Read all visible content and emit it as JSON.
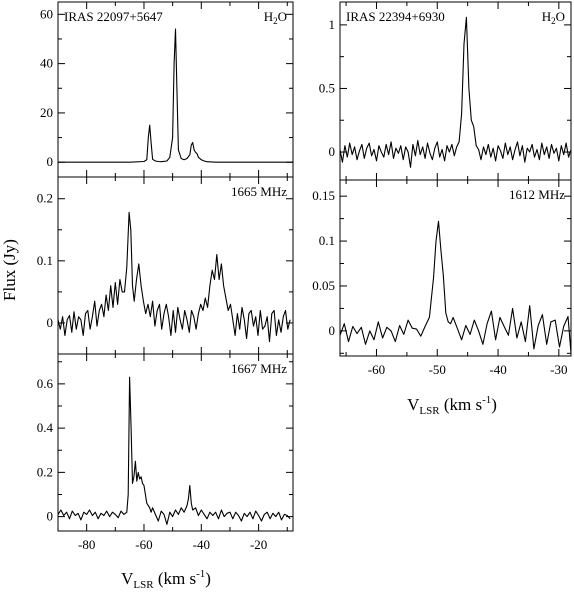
{
  "figure": {
    "ylabel": "Flux (Jy)",
    "xlabel_left": {
      "main": "V",
      "sub": "LSR",
      "unit_open": " (km s",
      "sup": "-1",
      "unit_close": ")"
    },
    "xlabel_right": {
      "main": "V",
      "sub": "LSR",
      "unit_open": " (km s",
      "sup": "-1",
      "unit_close": ")"
    }
  },
  "chart_data": [
    {
      "type": "line",
      "id": "iras22097-h2o",
      "source": "IRAS 22097+5647",
      "line_label": {
        "main": "H",
        "sub": "2",
        "tail": "O"
      },
      "xlim": [
        -90,
        -8
      ],
      "ylim": [
        -6,
        65
      ],
      "xticks": [
        -80,
        -60,
        -40,
        -20
      ],
      "xtick_labels": [
        "",
        "",
        "",
        ""
      ],
      "yticks": [
        0,
        20,
        40,
        60
      ],
      "ytick_labels": [
        "0",
        "20",
        "40",
        "60"
      ],
      "x": [
        -90,
        -85,
        -80,
        -75,
        -70,
        -65,
        -60,
        -59,
        -58.5,
        -58,
        -57.5,
        -57,
        -56,
        -55,
        -54,
        -52,
        -51,
        -50,
        -49.5,
        -49,
        -48.5,
        -48,
        -47,
        -46,
        -45,
        -44,
        -43.5,
        -43,
        -42.5,
        -42,
        -41.5,
        -41,
        -40,
        -39,
        -38,
        -35,
        -30,
        -25,
        -20,
        -15,
        -10,
        -8
      ],
      "y": [
        0,
        0,
        0,
        0,
        0,
        0,
        0.3,
        1,
        10,
        15,
        8,
        1.2,
        0.5,
        0.3,
        0.2,
        0.5,
        2,
        10,
        40,
        54,
        30,
        5,
        1.5,
        1,
        1.5,
        3,
        7,
        8,
        5,
        4,
        3.5,
        2,
        1,
        0.5,
        0.2,
        0,
        0,
        0,
        0,
        0,
        0,
        0
      ]
    },
    {
      "type": "line",
      "id": "iras22097-1665",
      "line_label": {
        "main": "1665 MHz"
      },
      "xlim": [
        -90,
        -8
      ],
      "ylim": [
        -0.05,
        0.235
      ],
      "xticks": [
        -80,
        -60,
        -40,
        -20
      ],
      "xtick_labels": [
        "",
        "",
        "",
        ""
      ],
      "yticks": [
        0,
        0.1,
        0.2
      ],
      "ytick_labels": [
        "0",
        "0.1",
        "0.2"
      ],
      "x": [
        -90,
        -89.2,
        -88.4,
        -87.6,
        -86.8,
        -86,
        -85.2,
        -84.4,
        -83.6,
        -82.8,
        -82,
        -81.2,
        -80.4,
        -79.6,
        -78.8,
        -78,
        -77.2,
        -76.4,
        -75.6,
        -74.8,
        -74,
        -73.2,
        -72.4,
        -71.6,
        -70.8,
        -70,
        -69.2,
        -68.4,
        -67.6,
        -66.8,
        -66,
        -65.2,
        -64.6,
        -64,
        -63.4,
        -62.6,
        -61.8,
        -61,
        -60.2,
        -59.4,
        -58.6,
        -57.8,
        -57,
        -56.2,
        -55.4,
        -54.6,
        -53.8,
        -53,
        -52.2,
        -51.4,
        -50.6,
        -49.8,
        -49,
        -48.2,
        -47.4,
        -46.6,
        -45.8,
        -45,
        -44.2,
        -43.4,
        -42.6,
        -41.8,
        -41,
        -40.2,
        -39.4,
        -38.6,
        -37.8,
        -37,
        -36.2,
        -35.4,
        -34.6,
        -33.8,
        -33,
        -32.2,
        -31.4,
        -30.6,
        -29.8,
        -29,
        -28.2,
        -27.4,
        -26.6,
        -25.8,
        -25,
        -24.2,
        -23.4,
        -22.6,
        -21.8,
        -21,
        -20.2,
        -19.4,
        -18.6,
        -17.8,
        -17,
        -16.2,
        -15.4,
        -14.6,
        -13.8,
        -13,
        -12.2,
        -11.4,
        -10.6,
        -9.8,
        -9
      ],
      "y": [
        0.005,
        -0.01,
        0.01,
        -0.02,
        0.005,
        0.012,
        -0.015,
        0.018,
        -0.01,
        0.01,
        0.005,
        -0.02,
        0.015,
        0.02,
        -0.01,
        0.01,
        0.035,
        -0.005,
        0.02,
        0.03,
        0.01,
        0.045,
        0.02,
        0.06,
        0.025,
        0.065,
        0.03,
        0.07,
        0.05,
        0.05,
        0.09,
        0.178,
        0.15,
        0.06,
        0.035,
        0.07,
        0.095,
        0.06,
        0.035,
        0.015,
        0.03,
        0.01,
        0.035,
        -0.005,
        0.02,
        0.03,
        -0.01,
        0.015,
        0.03,
        0.01,
        -0.02,
        0.02,
        -0.015,
        0.025,
        0.005,
        -0.01,
        0.02,
        0.005,
        -0.015,
        0.02,
        0.01,
        -0.01,
        0.015,
        0.03,
        0.02,
        0.04,
        0.025,
        0.06,
        0.085,
        0.07,
        0.11,
        0.07,
        0.095,
        0.06,
        0.04,
        0.02,
        0.03,
        0.005,
        -0.02,
        0.015,
        -0.01,
        0.025,
        0.005,
        -0.025,
        0.015,
        0.02,
        -0.005,
        0.01,
        -0.02,
        0.02,
        -0.01,
        -0.005,
        0.01,
        -0.03,
        0.015,
        0.02,
        -0.02,
        0.005,
        -0.015,
        0.01,
        0.02,
        -0.01,
        0.005
      ]
    },
    {
      "type": "line",
      "id": "iras22097-1667",
      "line_label": {
        "main": "1667 MHz"
      },
      "xlim": [
        -90,
        -8
      ],
      "ylim": [
        -0.065,
        0.735
      ],
      "xticks": [
        -80,
        -60,
        -40,
        -20
      ],
      "xtick_labels": [
        "-80",
        "-60",
        "-40",
        "-20"
      ],
      "yticks": [
        0,
        0.2,
        0.4,
        0.6
      ],
      "ytick_labels": [
        "0",
        "0.2",
        "0.4",
        "0.6"
      ],
      "x": [
        -90,
        -89,
        -88,
        -87,
        -86,
        -85,
        -84,
        -83,
        -82,
        -81,
        -80,
        -79,
        -78,
        -77,
        -76,
        -75,
        -74,
        -73,
        -72,
        -71,
        -70,
        -69,
        -68,
        -67,
        -66,
        -65.5,
        -65,
        -64.5,
        -64,
        -63.5,
        -63,
        -62.5,
        -62,
        -61.5,
        -61,
        -60.5,
        -60,
        -59.5,
        -59,
        -58.5,
        -58,
        -57.5,
        -57,
        -56,
        -55,
        -54,
        -53,
        -52,
        -51,
        -50,
        -49,
        -48,
        -47,
        -46,
        -45,
        -44.5,
        -44,
        -43.5,
        -43,
        -42,
        -41,
        -40,
        -39,
        -38,
        -37,
        -36,
        -35,
        -34,
        -33,
        -32,
        -31,
        -30,
        -29,
        -28,
        -27,
        -26,
        -25,
        -24,
        -23,
        -22,
        -21,
        -20,
        -19,
        -18,
        -17,
        -16,
        -15,
        -14,
        -13,
        -12,
        -11,
        -10,
        -9
      ],
      "y": [
        0.01,
        0.03,
        0.005,
        0.02,
        -0.01,
        0.025,
        0.005,
        0.015,
        -0.015,
        0.02,
        0.01,
        0.03,
        0.005,
        0.02,
        -0.01,
        0.015,
        0.005,
        0.025,
        0.0,
        0.02,
        0.01,
        -0.005,
        0.025,
        0.01,
        0.02,
        0.1,
        0.63,
        0.4,
        0.15,
        0.18,
        0.25,
        0.16,
        0.2,
        0.17,
        0.18,
        0.15,
        0.14,
        0.1,
        0.06,
        0.05,
        0.04,
        0.02,
        0.04,
        0.01,
        -0.02,
        0.025,
        0.01,
        -0.035,
        0.02,
        0.0,
        0.03,
        0.01,
        0.04,
        0.02,
        0.05,
        0.08,
        0.14,
        0.06,
        0.03,
        0.04,
        0.005,
        0.03,
        0.01,
        -0.01,
        0.02,
        0.005,
        0.02,
        -0.01,
        0.03,
        0.0,
        0.015,
        0.02,
        -0.01,
        0.02,
        0.005,
        -0.02,
        0.015,
        0.0,
        0.02,
        -0.01,
        0.025,
        0.005,
        -0.02,
        0.01,
        0.02,
        -0.01,
        0.015,
        0.0,
        0.02,
        -0.015,
        0.01,
        0.005,
        -0.01
      ]
    },
    {
      "type": "line",
      "id": "iras22394-h2o",
      "source": "IRAS 22394+6930",
      "line_label": {
        "main": "H",
        "sub": "2",
        "tail": "O"
      },
      "xlim": [
        -66,
        -28
      ],
      "ylim": [
        -0.22,
        1.18
      ],
      "xticks": [
        -60,
        -50,
        -40,
        -30
      ],
      "xtick_labels": [
        "",
        "",
        "",
        ""
      ],
      "yticks": [
        0,
        0.5,
        1
      ],
      "ytick_labels": [
        "0",
        "0.5",
        "1"
      ],
      "x": [
        -66,
        -65.6,
        -65.2,
        -64.8,
        -64.4,
        -64,
        -63.6,
        -63.2,
        -62.8,
        -62.4,
        -62,
        -61.6,
        -61.2,
        -60.8,
        -60.4,
        -60,
        -59.6,
        -59.2,
        -58.8,
        -58.4,
        -58,
        -57.6,
        -57.2,
        -56.8,
        -56.4,
        -56,
        -55.6,
        -55.2,
        -54.8,
        -54.4,
        -54,
        -53.6,
        -53.2,
        -52.8,
        -52.4,
        -52,
        -51.6,
        -51.2,
        -50.8,
        -50.4,
        -50,
        -49.6,
        -49.2,
        -48.8,
        -48.4,
        -48,
        -47.6,
        -47.2,
        -46.8,
        -46.4,
        -46,
        -45.6,
        -45.2,
        -44.8,
        -44.4,
        -44,
        -43.6,
        -43.2,
        -42.8,
        -42.4,
        -42,
        -41.6,
        -41.2,
        -40.8,
        -40.4,
        -40,
        -39.6,
        -39.2,
        -38.8,
        -38.4,
        -38,
        -37.6,
        -37.2,
        -36.8,
        -36.4,
        -36,
        -35.6,
        -35.2,
        -34.8,
        -34.4,
        -34,
        -33.6,
        -33.2,
        -32.8,
        -32.4,
        -32,
        -31.6,
        -31.2,
        -30.8,
        -30.4,
        -30,
        -29.6,
        -29.2,
        -28.8,
        -28.4,
        -28
      ],
      "y": [
        0.02,
        -0.08,
        0.05,
        -0.04,
        0.07,
        -0.02,
        0.04,
        -0.06,
        0.01,
        0.06,
        -0.05,
        0.03,
        0.07,
        -0.03,
        0.02,
        -0.07,
        0.05,
        0.0,
        -0.04,
        0.06,
        -0.02,
        0.08,
        -0.05,
        0.03,
        -0.01,
        0.05,
        -0.06,
        0.04,
        0.0,
        -0.12,
        0.06,
        -0.03,
        0.09,
        -0.02,
        0.04,
        -0.05,
        0.07,
        -0.01,
        -0.06,
        0.03,
        0.08,
        -0.04,
        0.02,
        -0.07,
        0.05,
        0.0,
        0.06,
        -0.03,
        0.04,
        0.08,
        0.3,
        0.85,
        1.06,
        0.5,
        0.25,
        0.2,
        0.05,
        0.02,
        -0.06,
        0.04,
        -0.02,
        0.06,
        -0.04,
        0.03,
        -0.07,
        0.05,
        0.01,
        -0.05,
        0.07,
        -0.02,
        0.04,
        -0.06,
        0.02,
        0.08,
        -0.03,
        0.05,
        -0.08,
        0.03,
        0.0,
        0.06,
        -0.04,
        0.02,
        -0.06,
        0.07,
        -0.02,
        0.04,
        -0.05,
        0.06,
        -0.01,
        0.03,
        -0.07,
        0.05,
        -0.02,
        0.07,
        -0.04,
        0.02
      ]
    },
    {
      "type": "line",
      "id": "iras22394-1612",
      "line_label": {
        "main": "1612 MHz"
      },
      "xlim": [
        -66,
        -28
      ],
      "ylim": [
        -0.028,
        0.168
      ],
      "xticks": [
        -60,
        -50,
        -40,
        -30
      ],
      "xtick_labels": [
        "-60",
        "-50",
        "-40",
        "-30"
      ],
      "yticks": [
        0,
        0.05,
        0.1,
        0.15
      ],
      "ytick_labels": [
        "0",
        "0.05",
        "0.1",
        "0.15"
      ],
      "x": [
        -66,
        -65.3,
        -64.6,
        -63.9,
        -63.2,
        -62.5,
        -61.8,
        -61.1,
        -60.4,
        -59.7,
        -59,
        -58.3,
        -57.6,
        -56.9,
        -56.2,
        -55.5,
        -54.8,
        -54.1,
        -53.4,
        -52.7,
        -52,
        -51.3,
        -50.6,
        -50.2,
        -49.8,
        -49.4,
        -49,
        -48.6,
        -48.2,
        -47.8,
        -47.4,
        -46.7,
        -46,
        -45.3,
        -44.6,
        -43.9,
        -43.2,
        -42.5,
        -41.8,
        -41.1,
        -40.4,
        -39.7,
        -39,
        -38.3,
        -37.6,
        -36.9,
        -36.2,
        -35.5,
        -34.8,
        -34.1,
        -33.4,
        -32.7,
        -32,
        -31.3,
        -30.6,
        -29.9,
        -29.2,
        -28.5,
        -28
      ],
      "y": [
        -0.005,
        0.008,
        -0.012,
        0.005,
        -0.003,
        0.004,
        -0.015,
        0.0,
        -0.01,
        0.01,
        -0.008,
        0.004,
        0.0,
        -0.012,
        0.006,
        -0.004,
        0.012,
        0.003,
        0.002,
        -0.006,
        0.005,
        0.015,
        0.06,
        0.1,
        0.122,
        0.09,
        0.062,
        0.02,
        0.01,
        0.008,
        0.015,
        0.003,
        -0.01,
        0.006,
        -0.004,
        0.012,
        0.0,
        -0.015,
        0.008,
        0.022,
        -0.01,
        0.015,
        0.005,
        -0.005,
        0.025,
        -0.008,
        0.01,
        -0.012,
        0.028,
        -0.02,
        0.006,
        0.018,
        -0.015,
        0.01,
        0.012,
        -0.018,
        0.005,
        0.016,
        -0.025
      ]
    }
  ]
}
